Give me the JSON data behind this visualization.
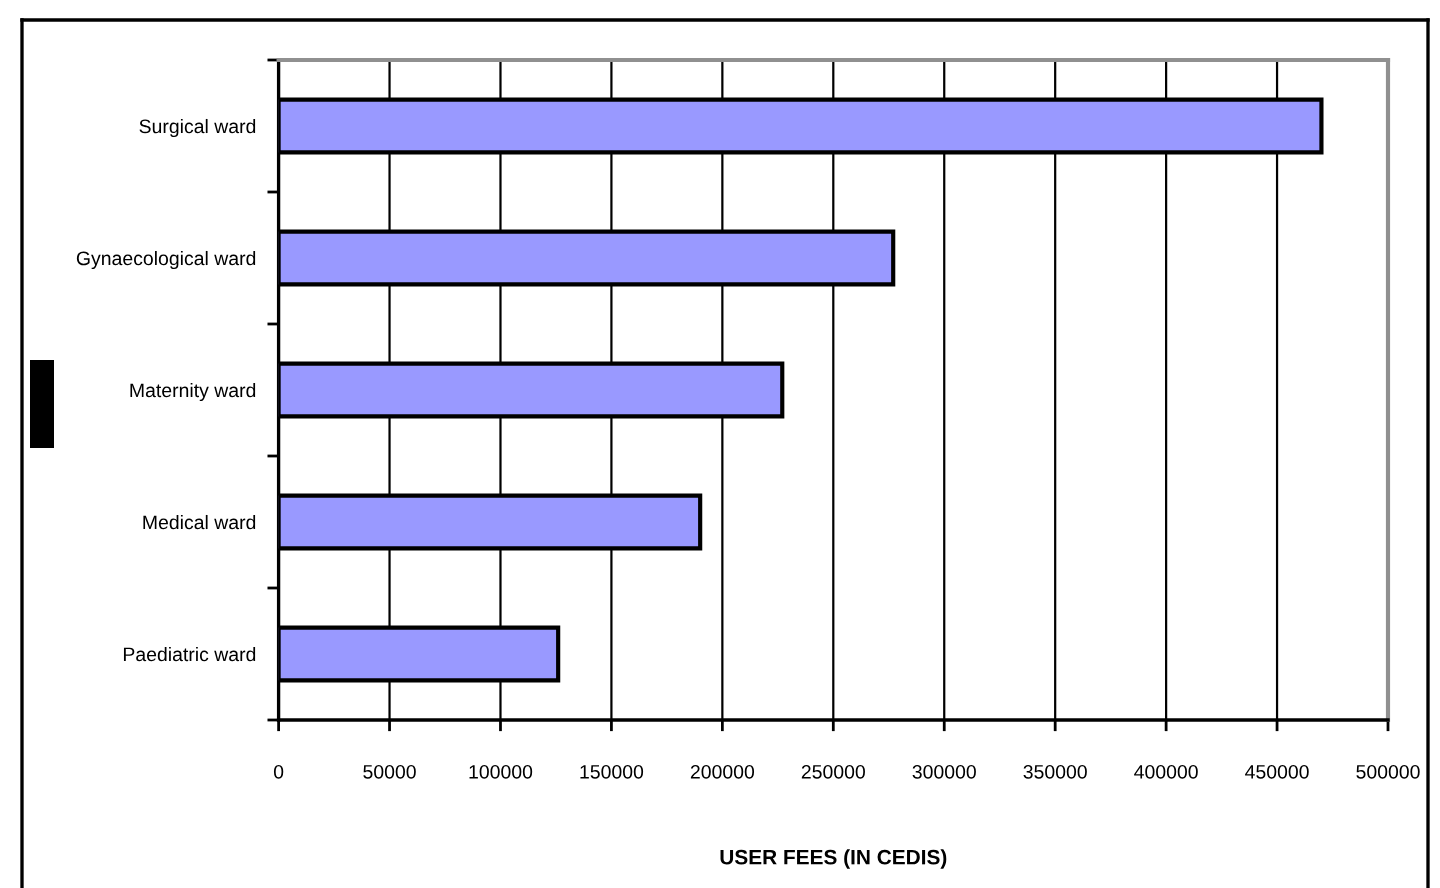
{
  "chart_data": {
    "type": "bar",
    "orientation": "horizontal",
    "categories": [
      "Surgical ward",
      "Gynaecological ward",
      "Maternity ward",
      "Medical ward",
      "Paediatric ward"
    ],
    "values": [
      470000,
      277000,
      227000,
      190000,
      126000
    ],
    "color": "#9999ff",
    "xlabel": "USER FEES (IN CEDIS)",
    "xlim": [
      0,
      500000
    ],
    "xticks": [
      0,
      50000,
      100000,
      150000,
      200000,
      250000,
      300000,
      350000,
      400000,
      450000,
      500000
    ],
    "grid": "x"
  }
}
